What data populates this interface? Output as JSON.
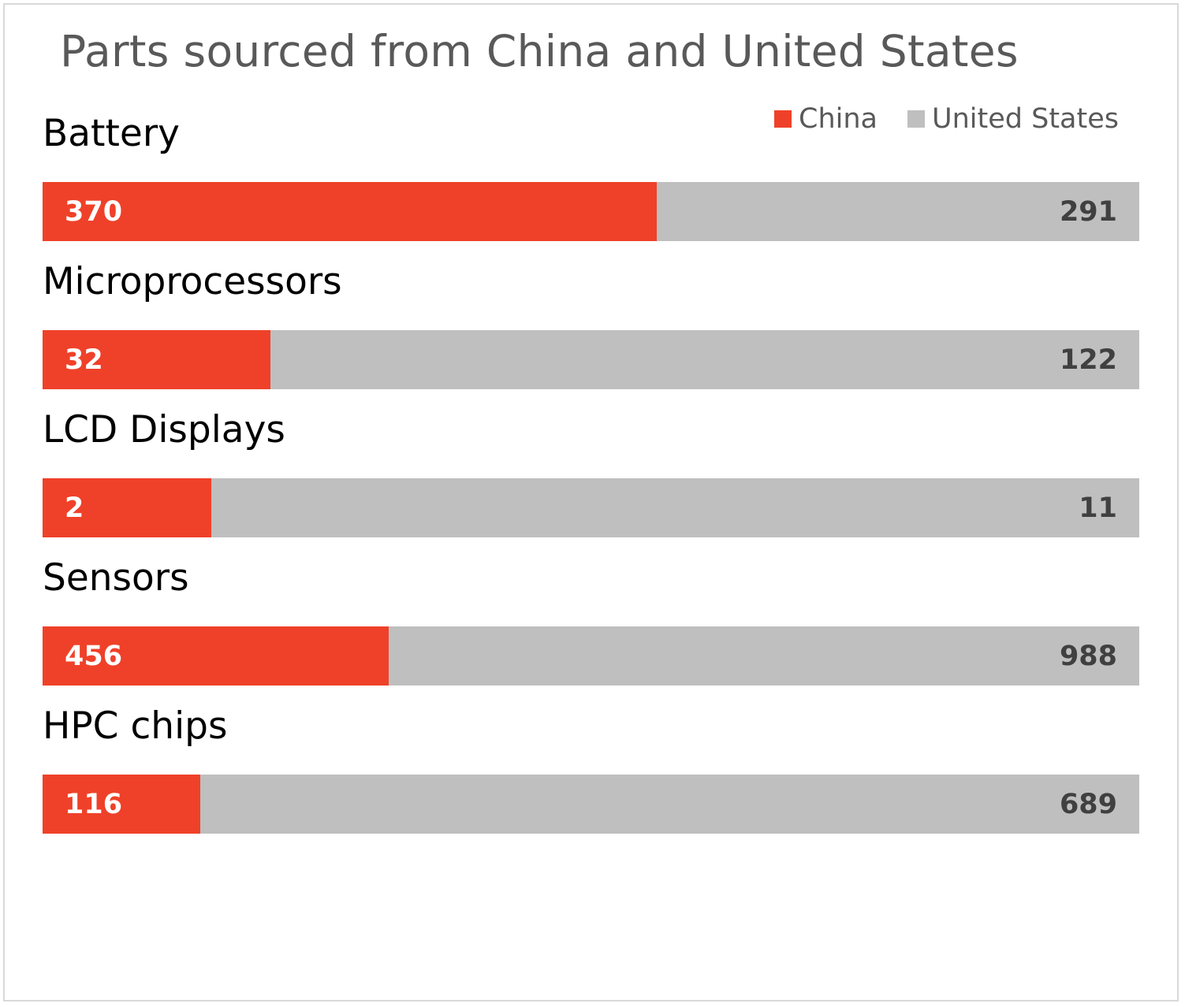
{
  "chart_data": {
    "type": "bar",
    "orientation": "horizontal",
    "stacked": "100%",
    "title": "Parts sourced from China and United States",
    "categories": [
      "Battery",
      "Microprocessors",
      "LCD Displays",
      "Sensors",
      "HPC chips"
    ],
    "series": [
      {
        "name": "China",
        "values": [
          370,
          32,
          2,
          456,
          116
        ],
        "color": "#ef4129"
      },
      {
        "name": "United States",
        "values": [
          291,
          122,
          11,
          988,
          689
        ],
        "color": "#bfbfbf"
      }
    ],
    "legend_position": "top-right",
    "grid": false,
    "data_labels": true
  }
}
